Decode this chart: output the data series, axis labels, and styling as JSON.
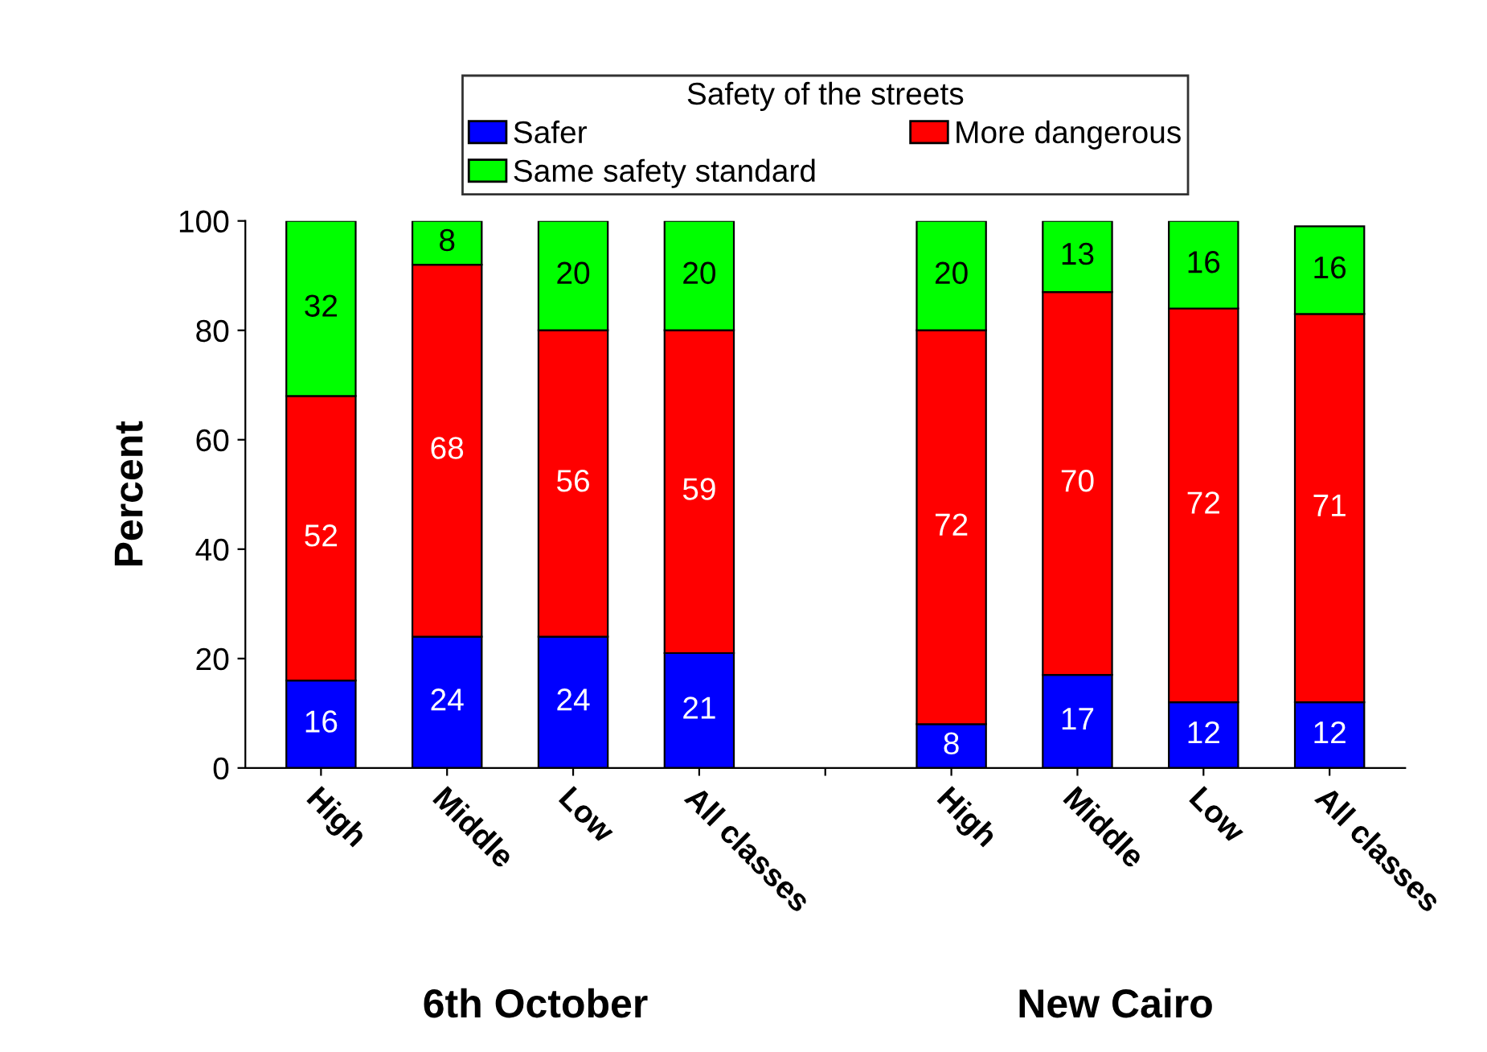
{
  "chart_data": {
    "type": "bar",
    "stacked": true,
    "legend_title": "Safety of the streets",
    "ylabel": "Percent",
    "categories": [
      "High",
      "Middle",
      "Low",
      "All classes",
      null,
      "High",
      "Middle",
      "Low",
      "All classes"
    ],
    "series": [
      {
        "name": "Safer",
        "color": "#0000ff",
        "values": [
          16,
          24,
          24,
          21,
          null,
          8,
          17,
          12,
          12
        ]
      },
      {
        "name": "More dangerous",
        "color": "#ff0000",
        "values": [
          52,
          68,
          56,
          59,
          null,
          72,
          70,
          72,
          71
        ]
      },
      {
        "name": "Same safety standard",
        "color": "#00ff00",
        "values": [
          32,
          8,
          20,
          20,
          null,
          20,
          13,
          16,
          16
        ]
      }
    ],
    "ylim": [
      0,
      100
    ],
    "yticks": [
      0,
      20,
      40,
      60,
      80,
      100
    ],
    "data_labels": true,
    "grid": false,
    "legend": "top",
    "annotations": [
      "6th October",
      "New Cairo"
    ]
  }
}
